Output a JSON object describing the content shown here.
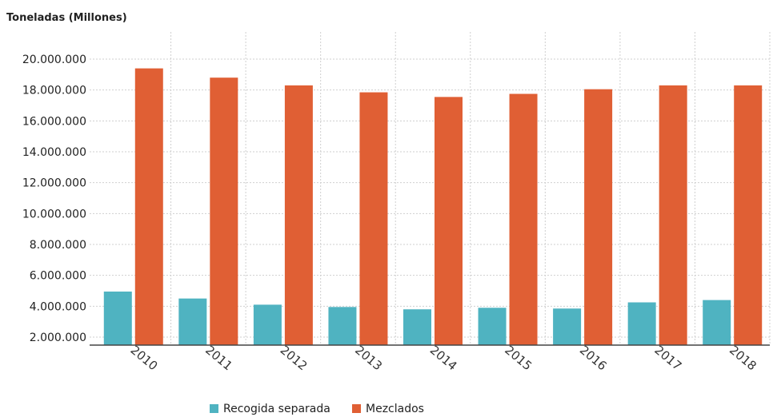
{
  "chart_data": {
    "type": "bar",
    "ylabel": "Toneladas (Millones)",
    "categories": [
      "2010",
      "2011",
      "2012",
      "2013",
      "2014",
      "2015",
      "2016",
      "2017",
      "2018"
    ],
    "series": [
      {
        "name": "Recogida separada",
        "color": "#4fb3c1",
        "values": [
          4950000,
          4500000,
          4100000,
          3950000,
          3800000,
          3900000,
          3850000,
          4250000,
          4400000
        ]
      },
      {
        "name": "Mezclados",
        "color": "#e05f34",
        "values": [
          19400000,
          18800000,
          18300000,
          17850000,
          17550000,
          17750000,
          18050000,
          18300000,
          18300000
        ]
      }
    ],
    "ylim": [
      1500000,
      21000000
    ],
    "yticks": [
      2000000,
      4000000,
      6000000,
      8000000,
      10000000,
      12000000,
      14000000,
      16000000,
      18000000,
      20000000
    ],
    "ytick_labels": [
      "2.000.000",
      "4.000.000",
      "6.000.000",
      "8.000.000",
      "10.000.000",
      "12.000.000",
      "14.000.000",
      "16.000.000",
      "18.000.000",
      "20.000.000"
    ],
    "grid": true,
    "legend": "bottom"
  }
}
